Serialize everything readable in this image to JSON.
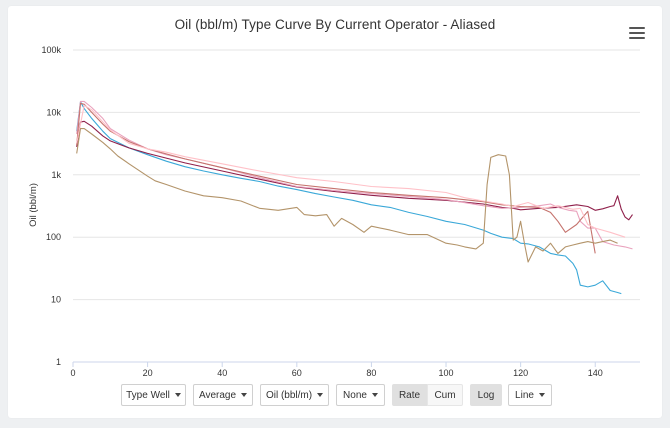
{
  "chart_data": {
    "type": "line",
    "title": "Oil (bbl/m) Type Curve By Current Operator - Aliased",
    "xlabel": "",
    "ylabel": "Oil (bbl/m)",
    "y_scale": "log",
    "ylim": [
      1,
      100000
    ],
    "xlim": [
      0,
      152
    ],
    "x_ticks": [
      "0",
      "20",
      "40",
      "60",
      "80",
      "100",
      "120",
      "140"
    ],
    "y_ticks": [
      "1",
      "10",
      "100",
      "1k",
      "10k",
      "100k"
    ],
    "grid": true,
    "legend": "none",
    "series": [
      {
        "color": "#3aa8d8",
        "x": [
          1,
          2,
          3,
          5,
          8,
          10,
          15,
          20,
          25,
          30,
          35,
          40,
          45,
          50,
          55,
          60,
          65,
          70,
          75,
          80,
          85,
          90,
          95,
          100,
          105,
          110,
          112,
          115,
          118,
          120,
          122,
          125,
          128,
          130,
          132,
          134,
          135,
          136,
          138,
          140,
          142,
          144,
          146,
          147
        ],
        "y": [
          5000,
          14800,
          11500,
          8000,
          5000,
          3800,
          2700,
          2100,
          1650,
          1350,
          1150,
          1000,
          880,
          780,
          660,
          580,
          500,
          440,
          390,
          330,
          300,
          250,
          215,
          180,
          160,
          130,
          115,
          100,
          95,
          80,
          78,
          70,
          55,
          52,
          50,
          38,
          30,
          17,
          16,
          17,
          20,
          14,
          13,
          12.5
        ]
      },
      {
        "color": "#8f1f4a",
        "x": [
          1,
          2,
          3,
          5,
          8,
          10,
          15,
          20,
          30,
          40,
          50,
          60,
          70,
          80,
          90,
          100,
          110,
          115,
          118,
          120,
          125,
          130,
          135,
          138,
          140,
          142,
          144,
          145,
          146,
          147,
          148,
          149,
          150
        ],
        "y": [
          2800,
          7000,
          7200,
          6000,
          4200,
          3500,
          2700,
          2200,
          1550,
          1150,
          850,
          640,
          540,
          470,
          420,
          390,
          340,
          300,
          290,
          275,
          290,
          300,
          330,
          310,
          270,
          285,
          310,
          320,
          460,
          280,
          210,
          190,
          230
        ]
      },
      {
        "color": "#e9a2bd",
        "x": [
          1,
          2,
          3,
          5,
          8,
          10,
          15,
          20,
          25,
          30,
          40,
          50,
          60,
          70,
          80,
          90,
          100,
          110,
          115,
          120,
          125,
          128,
          130,
          133,
          135,
          136,
          138,
          140,
          142,
          145,
          148,
          150
        ],
        "y": [
          4500,
          15000,
          15000,
          12000,
          8000,
          5500,
          3600,
          2600,
          2100,
          1800,
          1300,
          900,
          650,
          560,
          500,
          450,
          400,
          320,
          290,
          300,
          320,
          340,
          300,
          270,
          260,
          180,
          140,
          140,
          85,
          75,
          70,
          65
        ]
      },
      {
        "color": "#c5736d",
        "x": [
          1,
          2,
          3,
          5,
          8,
          10,
          15,
          20,
          30,
          40,
          50,
          60,
          70,
          80,
          90,
          100,
          110,
          115,
          120,
          125,
          128,
          130,
          132,
          135,
          138,
          140
        ],
        "y": [
          3000,
          14000,
          13500,
          10000,
          6500,
          5000,
          3400,
          2600,
          1800,
          1300,
          950,
          700,
          600,
          520,
          470,
          430,
          370,
          330,
          310,
          300,
          250,
          180,
          120,
          160,
          260,
          55
        ]
      },
      {
        "color": "#ffc1c8",
        "x": [
          1,
          3,
          5,
          10,
          15,
          20,
          25,
          30,
          40,
          50,
          60,
          70,
          80,
          90,
          100,
          105,
          110,
          115,
          118,
          122,
          126,
          130,
          134,
          136,
          138,
          140,
          144,
          148
        ],
        "y": [
          3200,
          13000,
          11000,
          5200,
          3200,
          2600,
          2300,
          1950,
          1500,
          1150,
          900,
          780,
          650,
          600,
          520,
          430,
          380,
          340,
          310,
          360,
          290,
          320,
          280,
          290,
          160,
          140,
          120,
          100
        ]
      },
      {
        "color": "#b3946a",
        "x": [
          1,
          2,
          3,
          5,
          8,
          10,
          12,
          15,
          20,
          22,
          25,
          30,
          35,
          40,
          45,
          50,
          55,
          60,
          62,
          65,
          68,
          70,
          72,
          75,
          78,
          80,
          85,
          90,
          95,
          100,
          103,
          105,
          108,
          110,
          111,
          112,
          114,
          116,
          117,
          118,
          119,
          120,
          121,
          122,
          124,
          126,
          128,
          130,
          132,
          134,
          136,
          138,
          140,
          142,
          144,
          146
        ],
        "y": [
          2200,
          5500,
          5500,
          4500,
          3300,
          2600,
          2000,
          1500,
          950,
          800,
          700,
          550,
          460,
          430,
          380,
          290,
          270,
          300,
          230,
          220,
          230,
          150,
          200,
          160,
          120,
          150,
          130,
          110,
          110,
          80,
          75,
          70,
          65,
          80,
          700,
          1900,
          2100,
          2000,
          1000,
          90,
          100,
          180,
          80,
          40,
          70,
          60,
          80,
          55,
          70,
          75,
          80,
          85,
          80,
          85,
          90,
          80
        ]
      }
    ]
  },
  "toolbar": {
    "type_well_label": "Type Well",
    "average_label": "Average",
    "oil_label": "Oil (bbl/m)",
    "none_label": "None",
    "rate_label": "Rate",
    "cum_label": "Cum",
    "log_label": "Log",
    "line_label": "Line"
  }
}
